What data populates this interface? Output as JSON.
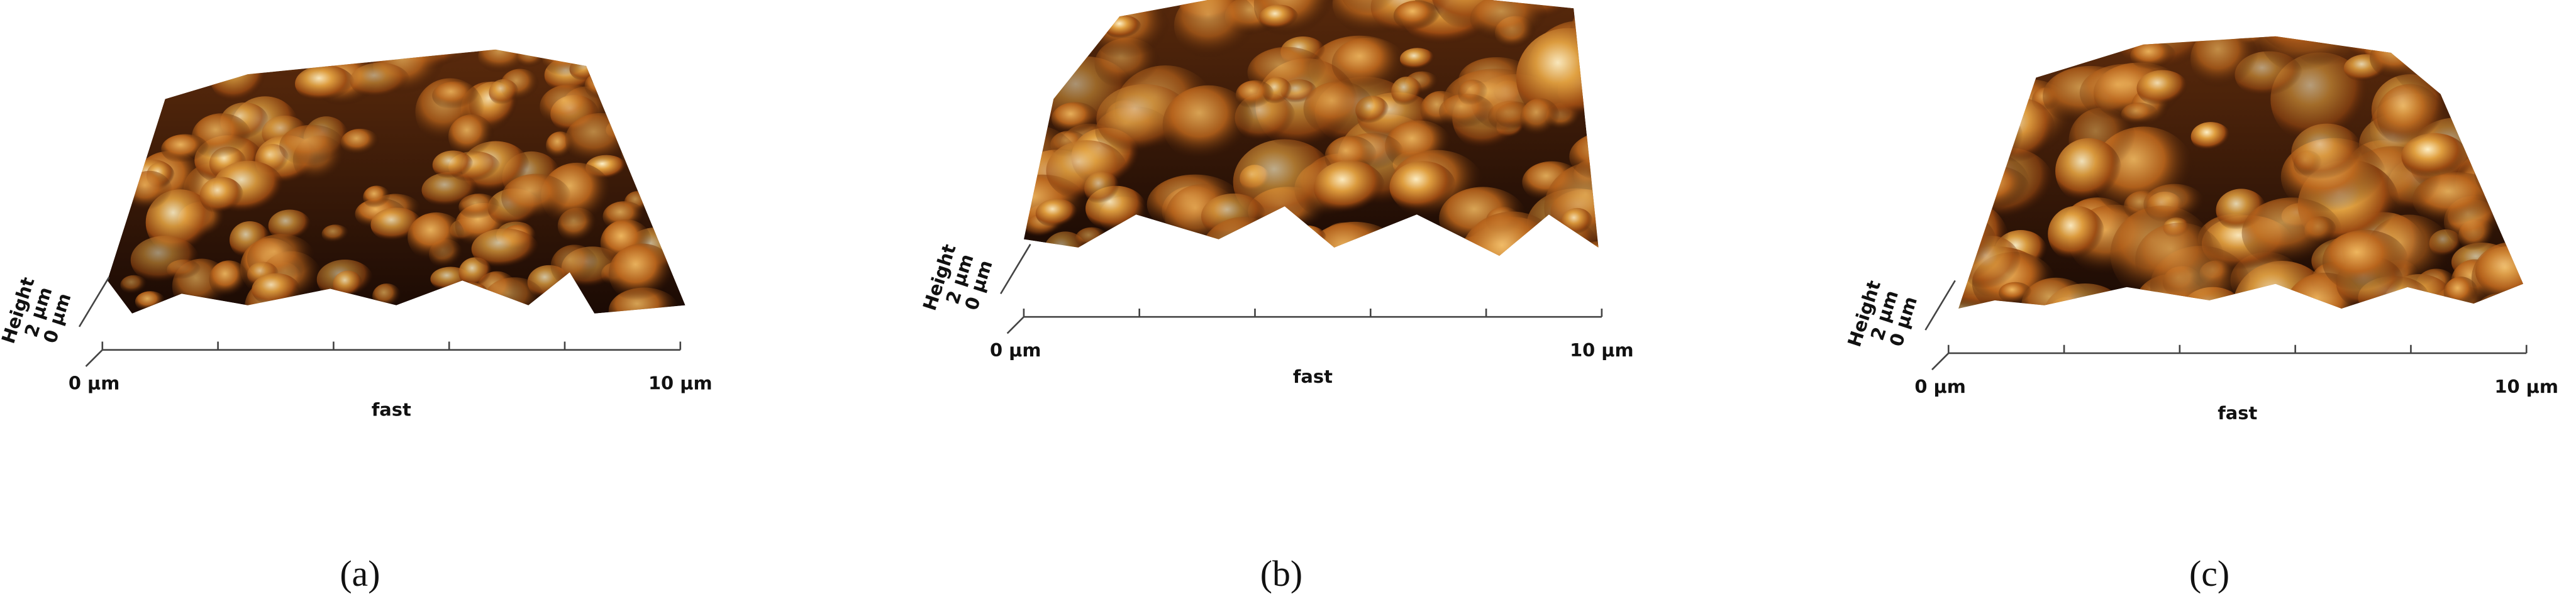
{
  "panels": [
    {
      "caption": "(a)",
      "x_axis": {
        "start": "0 µm",
        "end": "10 µm",
        "label": "fast"
      },
      "z_axis": {
        "top": "2 µm",
        "bottom": "0 µm",
        "label": "Height"
      }
    },
    {
      "caption": "(b)",
      "x_axis": {
        "start": "0 µm",
        "end": "10 µm",
        "label": "fast"
      },
      "z_axis": {
        "top": "2 µm",
        "bottom": "0 µm",
        "label": "Height"
      }
    },
    {
      "caption": "(c)",
      "x_axis": {
        "start": "0 µm",
        "end": "10 µm",
        "label": "fast"
      },
      "z_axis": {
        "top": "2 µm",
        "bottom": "0 µm",
        "label": "Height"
      }
    }
  ]
}
